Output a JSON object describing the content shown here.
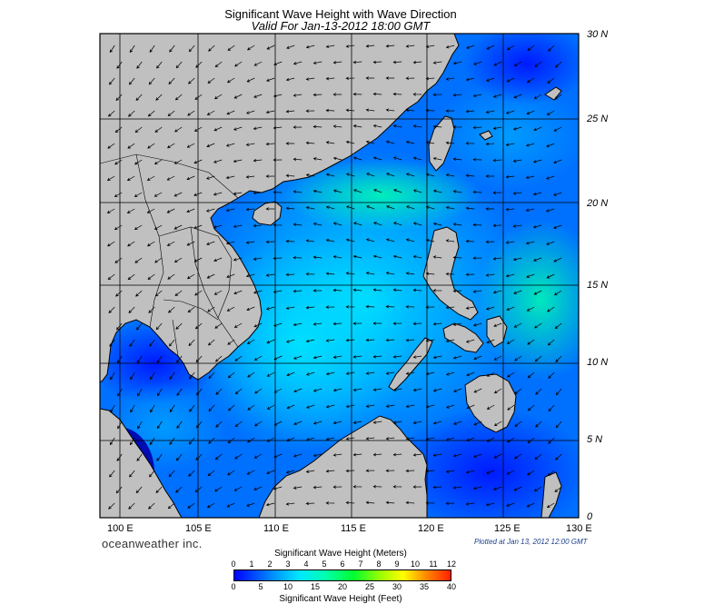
{
  "title": "Significant Wave Height with Wave Direction",
  "subtitle": "Valid For Jan-13-2012 18:00 GMT",
  "brand": "oceanweather inc.",
  "plotted": "Plotted at Jan 13, 2012 12:00 GMT",
  "longitude_labels": [
    "100 E",
    "105 E",
    "110 E",
    "115 E",
    "120 E",
    "125 E",
    "130 E"
  ],
  "latitude_labels": [
    "30 N",
    "25 N",
    "20 N",
    "15 N",
    "10 N",
    "5 N",
    "0"
  ],
  "colorbar": {
    "meters_title": "Significant Wave Height (Meters)",
    "feet_title": "Significant Wave Height (Feet)",
    "meters_ticks": [
      "0",
      "1",
      "2",
      "3",
      "4",
      "5",
      "6",
      "7",
      "8",
      "9",
      "10",
      "11",
      "12"
    ],
    "feet_ticks": [
      "0",
      "5",
      "10",
      "15",
      "20",
      "25",
      "30",
      "35",
      "40"
    ],
    "colors": [
      "#0000ff",
      "#00a0ff",
      "#00e6ff",
      "#00ff30",
      "#ffff00",
      "#ff2000"
    ]
  },
  "colors": {
    "land": "#c0c0c0",
    "ocean_low": "#0055ff",
    "ocean_high": "#00e6ff"
  }
}
